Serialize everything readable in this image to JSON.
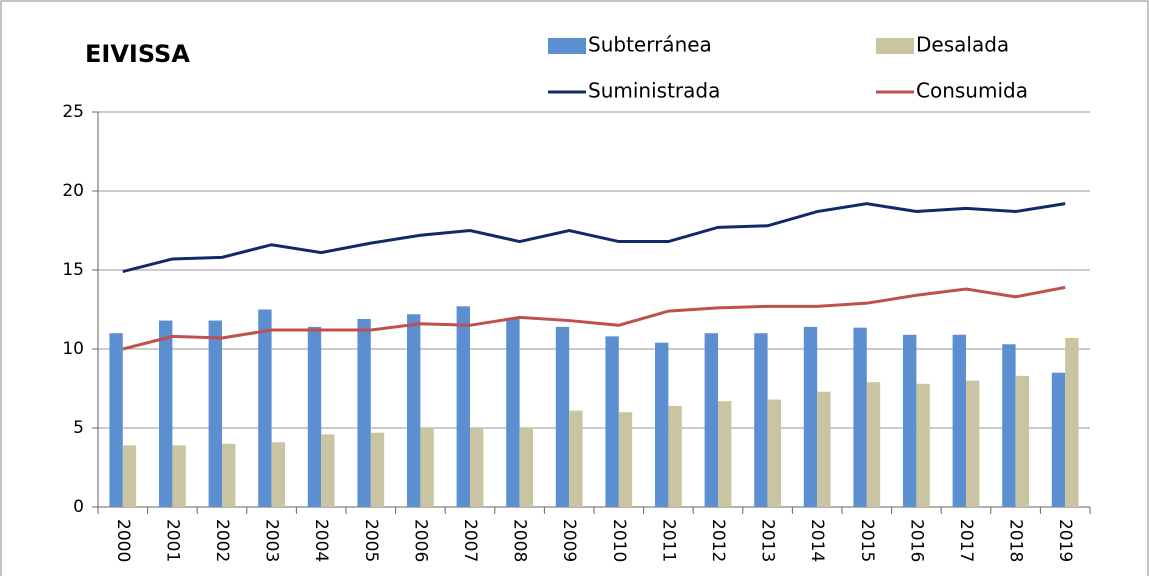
{
  "chart_data": {
    "type": "bar",
    "title": "EIVISSA",
    "categories": [
      "2000",
      "2001",
      "2002",
      "2003",
      "2004",
      "2005",
      "2006",
      "2007",
      "2008",
      "2009",
      "2010",
      "2011",
      "2012",
      "2013",
      "2014",
      "2015",
      "2016",
      "2017",
      "2018",
      "2019"
    ],
    "series": [
      {
        "name": "Subterránea",
        "kind": "bar",
        "color": "#5b8fd0",
        "values": [
          11.0,
          11.8,
          11.8,
          12.5,
          11.4,
          11.9,
          12.2,
          12.7,
          11.9,
          11.4,
          10.8,
          10.4,
          11.0,
          11.0,
          11.4,
          11.35,
          10.9,
          10.9,
          10.3,
          8.5
        ]
      },
      {
        "name": "Desalada",
        "kind": "bar",
        "color": "#c9c5a3",
        "values": [
          3.9,
          3.9,
          4.0,
          4.1,
          4.6,
          4.7,
          5.0,
          5.0,
          5.0,
          6.1,
          6.0,
          6.4,
          6.7,
          6.8,
          7.3,
          7.9,
          7.8,
          8.0,
          8.3,
          10.7
        ]
      },
      {
        "name": "Suministrada",
        "kind": "line",
        "color": "#102a66",
        "values": [
          14.9,
          15.7,
          15.8,
          16.6,
          16.1,
          16.7,
          17.2,
          17.5,
          16.8,
          17.5,
          16.8,
          16.8,
          17.7,
          17.8,
          18.7,
          19.2,
          18.7,
          18.9,
          18.7,
          19.2
        ]
      },
      {
        "name": "Consumida",
        "kind": "line",
        "color": "#c0504d",
        "values": [
          10.0,
          10.8,
          10.7,
          11.2,
          11.2,
          11.2,
          11.6,
          11.5,
          12.0,
          11.8,
          11.5,
          12.4,
          12.6,
          12.7,
          12.7,
          12.9,
          13.4,
          13.8,
          13.3,
          13.9
        ]
      }
    ],
    "ylim": [
      0,
      25
    ],
    "yticks": [
      0,
      5,
      10,
      15,
      20,
      25
    ],
    "grid": true
  }
}
